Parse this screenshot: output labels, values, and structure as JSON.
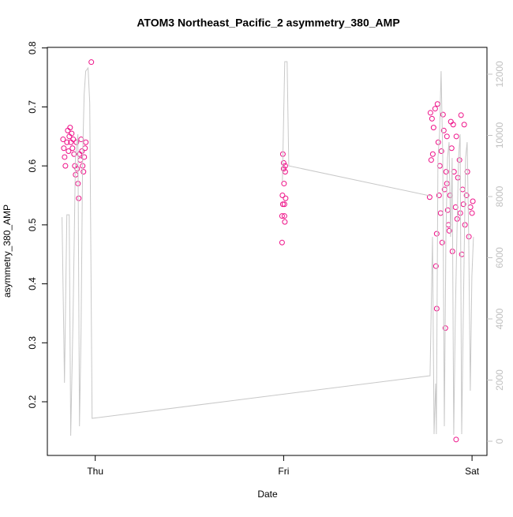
{
  "chart_data": {
    "type": "scatter",
    "title": "ATOM3 Northeast_Pacific_2 asymmetry_380_AMP",
    "x_label": "Date",
    "y_label": "asymmetry_380_AMP",
    "xlim": [
      -6.1,
      49.9
    ],
    "xticks": [
      {
        "value": 0,
        "label": "Thu"
      },
      {
        "value": 24,
        "label": "Fri"
      },
      {
        "value": 48,
        "label": "Sat"
      }
    ],
    "ylim": [
      0.109,
      0.801
    ],
    "yticks": [
      0.2,
      0.3,
      0.4,
      0.5,
      0.6,
      0.7,
      0.8
    ],
    "y2lim": [
      -464,
      12877
    ],
    "y2ticks": [
      0,
      2000,
      4000,
      6000,
      8000,
      10000,
      12000
    ],
    "series": [
      {
        "type": "scatter",
        "color": "#ee1188",
        "x": [
          -4.1,
          -4.0,
          -3.9,
          -3.8,
          -3.6,
          -3.5,
          -3.4,
          -3.3,
          -3.2,
          -3.1,
          -3.0,
          -2.9,
          -2.8,
          -2.7,
          -2.6,
          -2.5,
          -2.4,
          -2.3,
          -2.2,
          -2.1,
          -2.0,
          -1.9,
          -1.8,
          -1.7,
          -1.6,
          -1.5,
          -1.4,
          -1.3,
          -1.2,
          -0.5,
          23.8,
          23.8,
          23.85,
          23.9,
          23.9,
          24.0,
          24.0,
          24.05,
          24.1,
          24.1,
          24.15,
          24.2,
          24.2,
          24.25,
          42.6,
          42.7,
          42.8,
          42.9,
          43.0,
          43.1,
          43.3,
          43.4,
          43.5,
          43.5,
          43.6,
          43.7,
          43.8,
          43.9,
          44.0,
          44.1,
          44.2,
          44.3,
          44.4,
          44.5,
          44.6,
          44.7,
          44.8,
          44.8,
          44.9,
          45.0,
          45.1,
          45.2,
          45.3,
          45.4,
          45.5,
          45.6,
          45.7,
          45.9,
          46.0,
          46.1,
          46.2,
          45.97,
          46.4,
          46.5,
          46.6,
          46.7,
          46.8,
          46.9,
          47.0,
          47.1,
          47.3,
          47.4,
          47.6,
          47.8,
          48.0,
          48.1
        ],
        "values": [
          0.645,
          0.63,
          0.615,
          0.6,
          0.64,
          0.66,
          0.625,
          0.65,
          0.665,
          0.64,
          0.655,
          0.63,
          0.645,
          0.62,
          0.6,
          0.585,
          0.64,
          0.595,
          0.57,
          0.545,
          0.62,
          0.61,
          0.645,
          0.625,
          0.6,
          0.59,
          0.615,
          0.63,
          0.64,
          0.776,
          0.47,
          0.515,
          0.55,
          0.535,
          0.62,
          0.605,
          0.595,
          0.57,
          0.515,
          0.535,
          0.505,
          0.59,
          0.6,
          0.545,
          0.547,
          0.69,
          0.61,
          0.68,
          0.62,
          0.665,
          0.697,
          0.43,
          0.358,
          0.485,
          0.705,
          0.64,
          0.55,
          0.6,
          0.52,
          0.625,
          0.47,
          0.687,
          0.66,
          0.56,
          0.325,
          0.59,
          0.65,
          0.57,
          0.525,
          0.5,
          0.49,
          0.55,
          0.675,
          0.63,
          0.455,
          0.67,
          0.59,
          0.53,
          0.65,
          0.51,
          0.58,
          0.136,
          0.61,
          0.52,
          0.686,
          0.45,
          0.56,
          0.535,
          0.67,
          0.5,
          0.55,
          0.59,
          0.48,
          0.53,
          0.52,
          0.54
        ]
      },
      {
        "type": "line",
        "axis": "y2",
        "color": "#c8c8c8",
        "x": [
          -4.23,
          -3.92,
          -3.62,
          -3.32,
          -3.12,
          -2.82,
          -2.52,
          -2.21,
          -2.01,
          -1.81,
          -1.61,
          -1.41,
          -1.21,
          -0.91,
          -0.7,
          -0.4,
          42.65,
          42.96,
          43.16,
          43.36,
          43.46,
          43.66,
          43.86,
          44.06,
          44.27,
          44.47,
          44.67,
          44.87,
          45.07,
          45.27,
          45.47,
          45.67,
          45.87,
          46.07,
          46.28,
          46.48,
          46.68,
          46.88,
          47.18,
          47.38,
          47.58,
          47.78,
          47.98,
          48.18,
          null,
          23.84,
          24.14,
          24.44,
          24.65,
          42.65
        ],
        "values": [
          7327,
          1909,
          7405,
          7405,
          181,
          4102,
          9262,
          10036,
          490,
          3586,
          9262,
          11326,
          12100,
          12203,
          11068,
          748,
          2141,
          6682,
          232,
          1883,
          232,
          9262,
          10036,
          12100,
          9262,
          490,
          6682,
          9262,
          9778,
          6682,
          9262,
          206,
          4102,
          6682,
          9262,
          10036,
          232,
          4102,
          9262,
          9778,
          6682,
          1651,
          5392,
          6682,
          null,
          8488,
          12410,
          12410,
          9004,
          8024
        ]
      }
    ]
  }
}
